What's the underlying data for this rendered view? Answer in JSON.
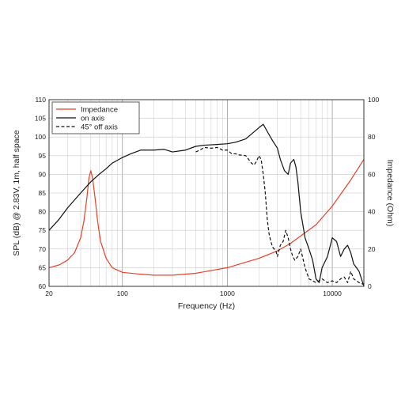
{
  "chart_data": {
    "type": "line",
    "title": "",
    "xlabel": "Frequency (Hz)",
    "ylabel_left": "SPL (dB) @ 2.83V, 1m, half space",
    "ylabel_right": "Impedance (Ohm)",
    "x_scale": "log",
    "xlim": [
      20,
      20000
    ],
    "ylim_left": [
      60,
      110
    ],
    "ylim_right": [
      0,
      100
    ],
    "x_ticks": [
      20,
      100,
      1000,
      10000
    ],
    "x_tick_labels": [
      "20",
      "100",
      "1000",
      "10000"
    ],
    "y_left_ticks": [
      60,
      65,
      70,
      75,
      80,
      85,
      90,
      95,
      100,
      105,
      110
    ],
    "y_left_tick_labels": [
      "60",
      "65",
      "70",
      "75",
      "80",
      "85",
      "90",
      "95",
      "100",
      "105",
      "110"
    ],
    "y_right_ticks": [
      0,
      20,
      40,
      60,
      80,
      100
    ],
    "y_right_tick_labels": [
      "0",
      "20",
      "40",
      "60",
      "80",
      "100"
    ],
    "grid": true,
    "legend_position": "top-left",
    "series": [
      {
        "name": "Impedance",
        "axis": "right",
        "color": "#e8402a",
        "style": "solid",
        "x": [
          20,
          25,
          30,
          35,
          40,
          43,
          46,
          48,
          50,
          52,
          55,
          58,
          62,
          70,
          80,
          100,
          150,
          200,
          300,
          500,
          1000,
          2000,
          3000,
          4000,
          5000,
          7000,
          10000,
          15000,
          20000
        ],
        "y": [
          10,
          11.5,
          14,
          18,
          26,
          35,
          48,
          58,
          62,
          58,
          47,
          35,
          24,
          15,
          10,
          7.5,
          6.5,
          6,
          6,
          7,
          10,
          15,
          19,
          23,
          27,
          33,
          43,
          57,
          68
        ]
      },
      {
        "name": "on axis",
        "axis": "left",
        "color": "#111111",
        "style": "solid",
        "x": [
          20,
          25,
          30,
          40,
          50,
          60,
          70,
          80,
          100,
          120,
          150,
          170,
          200,
          250,
          300,
          400,
          500,
          600,
          800,
          1000,
          1200,
          1500,
          1700,
          2000,
          2200,
          2400,
          2700,
          3000,
          3200,
          3500,
          3800,
          4000,
          4300,
          4500,
          4700,
          5000,
          5500,
          6000,
          6500,
          7000,
          7500,
          8000,
          9000,
          10000,
          11000,
          12000,
          13000,
          14000,
          15000,
          16000,
          17000,
          18000,
          20000
        ],
        "y": [
          75,
          78,
          81,
          85,
          88,
          90,
          91.5,
          93,
          94.5,
          95.5,
          96.5,
          96.5,
          96.5,
          96.7,
          96,
          96.5,
          97.5,
          97.8,
          98,
          98.2,
          98.6,
          99.5,
          100.8,
          102.5,
          103.4,
          101.5,
          99,
          97,
          94,
          91,
          90,
          93,
          94,
          92,
          88,
          80,
          73,
          70,
          67,
          62,
          61,
          65,
          68,
          73,
          72,
          68,
          70,
          71,
          69,
          66,
          65,
          64,
          60
        ]
      },
      {
        "name": "45° off axis",
        "axis": "left",
        "color": "#111111",
        "style": "dashed",
        "x": [
          500,
          550,
          600,
          700,
          800,
          900,
          1000,
          1100,
          1200,
          1300,
          1500,
          1700,
          1800,
          1900,
          2000,
          2100,
          2200,
          2300,
          2400,
          2500,
          2600,
          2700,
          2800,
          2900,
          3000,
          3200,
          3400,
          3600,
          3800,
          4000,
          4200,
          4400,
          4700,
          5000,
          5500,
          6000,
          6500,
          7000,
          8000,
          9000,
          10000,
          11000,
          12000,
          13000,
          14000,
          15000,
          16000,
          17000,
          18000,
          20000
        ],
        "y": [
          96,
          96.5,
          97.2,
          97,
          97.2,
          96.5,
          96.5,
          95.5,
          95.5,
          95.2,
          95,
          93,
          92.5,
          93.5,
          95,
          94,
          90,
          85,
          78,
          74,
          72,
          70.5,
          70,
          69.5,
          68,
          71,
          72,
          75,
          73,
          70,
          68,
          67,
          68,
          70,
          65,
          62,
          61.5,
          61,
          62,
          61,
          61.5,
          61,
          62,
          62.5,
          61,
          64,
          62,
          61.5,
          61,
          60.5
        ]
      }
    ]
  }
}
